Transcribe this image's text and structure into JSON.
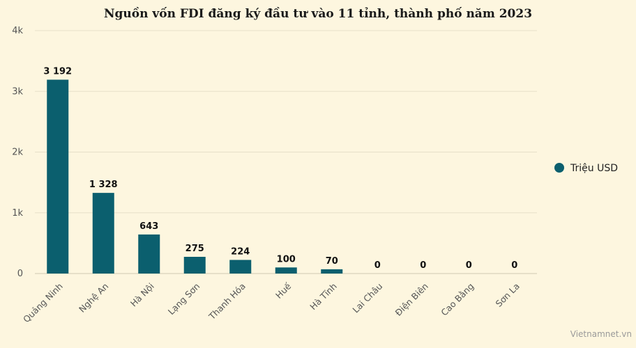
{
  "chart_data": {
    "type": "bar",
    "title": "Nguồn vốn FDI đăng ký đầu tư vào 11 tỉnh, thành phố năm 2023",
    "categories": [
      "Quảng Ninh",
      "Nghệ An",
      "Hà Nội",
      "Lạng Sơn",
      "Thanh Hóa",
      "Huế",
      "Hà Tĩnh",
      "Lai Châu",
      "Điện Biên",
      "Cao Bằng",
      "Sơn La"
    ],
    "series": [
      {
        "name": "Triệu USD",
        "values": [
          3192,
          1328,
          643,
          275,
          224,
          100,
          70,
          0,
          0,
          0,
          0
        ],
        "labels": [
          "3 192",
          "1 328",
          "643",
          "275",
          "224",
          "100",
          "70",
          "0",
          "0",
          "0",
          "0"
        ],
        "color": "#0b5f6e"
      }
    ],
    "ylim": [
      0,
      4000
    ],
    "yticks": [
      {
        "value": 0,
        "label": "0"
      },
      {
        "value": 1000,
        "label": "1k"
      },
      {
        "value": 2000,
        "label": "2k"
      },
      {
        "value": 3000,
        "label": "3k"
      },
      {
        "value": 4000,
        "label": "4k"
      }
    ],
    "grid": true,
    "legend_position": "right"
  },
  "credit": "Vietnamnet.vn",
  "colors": {
    "background": "#fdf6df",
    "bar": "#0b5f6e",
    "grid": "#e6e0c8"
  }
}
